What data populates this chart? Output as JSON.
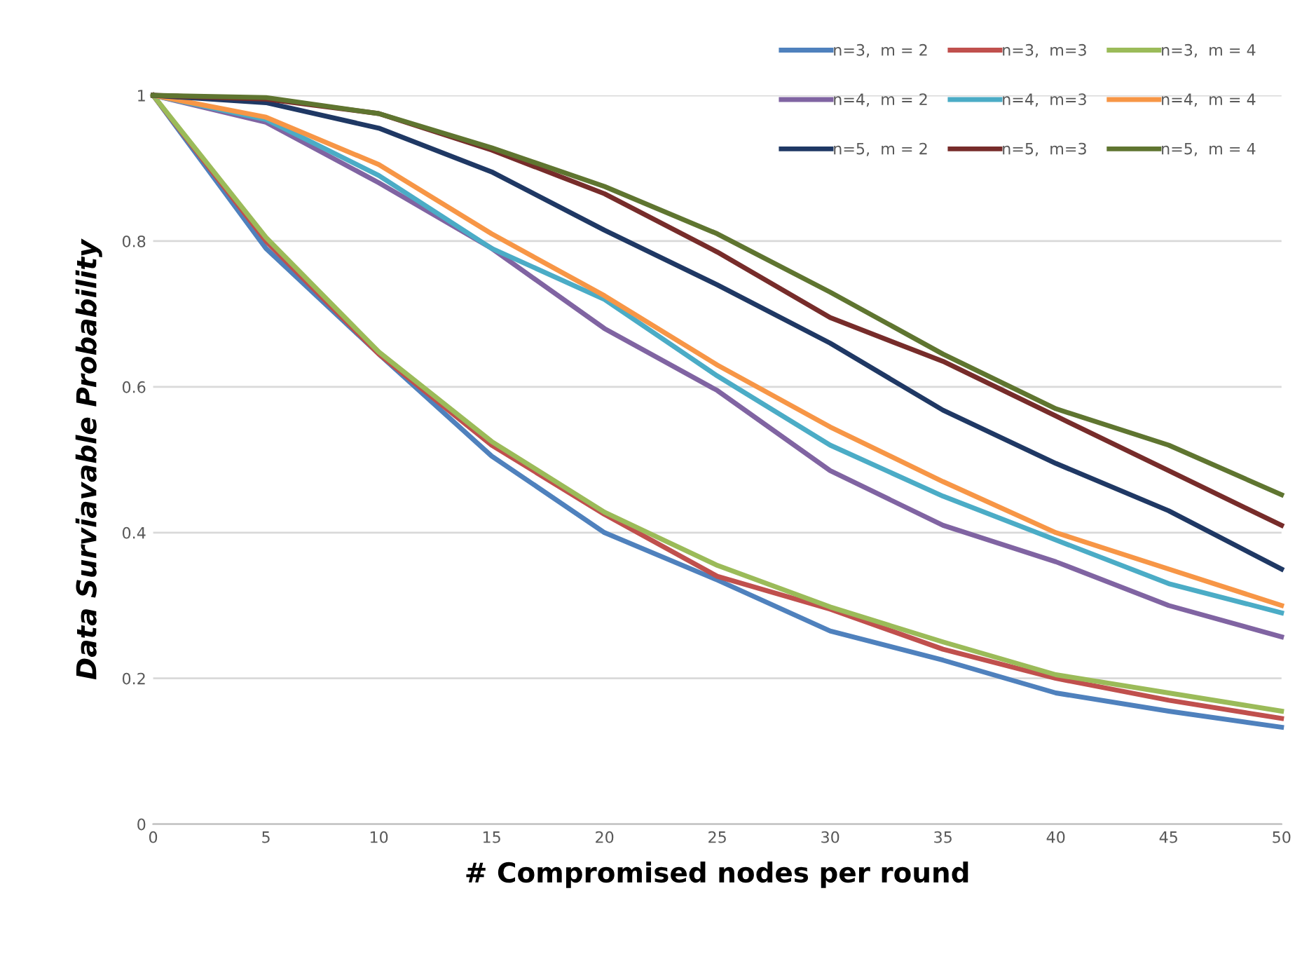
{
  "chart_data": {
    "type": "line",
    "xlabel": "# Compromised nodes per round",
    "ylabel": "Data Surviavable Probability",
    "x": [
      0,
      5,
      10,
      15,
      20,
      25,
      30,
      35,
      40,
      45,
      50
    ],
    "xlim": [
      0,
      50
    ],
    "xticks": [
      0,
      5,
      10,
      15,
      20,
      25,
      30,
      35,
      40,
      45,
      50
    ],
    "ylim": [
      0,
      1
    ],
    "yticks": [
      0,
      0.2,
      0.4,
      0.6,
      0.8,
      1
    ],
    "grid": "y",
    "legend": "top right",
    "marker": "none",
    "line_style": "solid",
    "series": [
      {
        "name": "n=3,  m = 2",
        "color": "#4f81bd",
        "values": [
          1,
          0.79,
          0.645,
          0.505,
          0.4,
          0.335,
          0.265,
          0.225,
          0.18,
          0.155,
          0.133
        ]
      },
      {
        "name": "n=3,  m=3",
        "color": "#c0504d",
        "values": [
          1,
          0.8,
          0.645,
          0.52,
          0.425,
          0.34,
          0.295,
          0.24,
          0.2,
          0.17,
          0.145
        ]
      },
      {
        "name": "n=3,  m = 4",
        "color": "#9bbb59",
        "values": [
          1,
          0.805,
          0.648,
          0.525,
          0.428,
          0.355,
          0.298,
          0.25,
          0.205,
          0.18,
          0.155
        ]
      },
      {
        "name": "n=4,  m = 2",
        "color": "#8064a2",
        "values": [
          1,
          0.963,
          0.88,
          0.79,
          0.68,
          0.595,
          0.485,
          0.41,
          0.36,
          0.3,
          0.257
        ]
      },
      {
        "name": "n=4,  m=3",
        "color": "#4bacc6",
        "values": [
          1,
          0.967,
          0.89,
          0.79,
          0.72,
          0.615,
          0.52,
          0.45,
          0.39,
          0.33,
          0.29
        ]
      },
      {
        "name": "n=4,  m = 4",
        "color": "#f79646",
        "values": [
          1,
          0.97,
          0.905,
          0.81,
          0.725,
          0.63,
          0.545,
          0.47,
          0.4,
          0.35,
          0.3
        ]
      },
      {
        "name": "n=5,  m = 2",
        "color": "#1f3864",
        "values": [
          1,
          0.99,
          0.955,
          0.895,
          0.815,
          0.74,
          0.66,
          0.568,
          0.495,
          0.43,
          0.35
        ]
      },
      {
        "name": "n=5,  m=3",
        "color": "#772c2a",
        "values": [
          1,
          0.995,
          0.975,
          0.925,
          0.865,
          0.785,
          0.695,
          0.635,
          0.56,
          0.485,
          0.41
        ]
      },
      {
        "name": "n=5,  m = 4",
        "color": "#5f7530",
        "values": [
          1,
          0.997,
          0.975,
          0.928,
          0.875,
          0.81,
          0.73,
          0.645,
          0.57,
          0.52,
          0.452
        ]
      }
    ]
  }
}
